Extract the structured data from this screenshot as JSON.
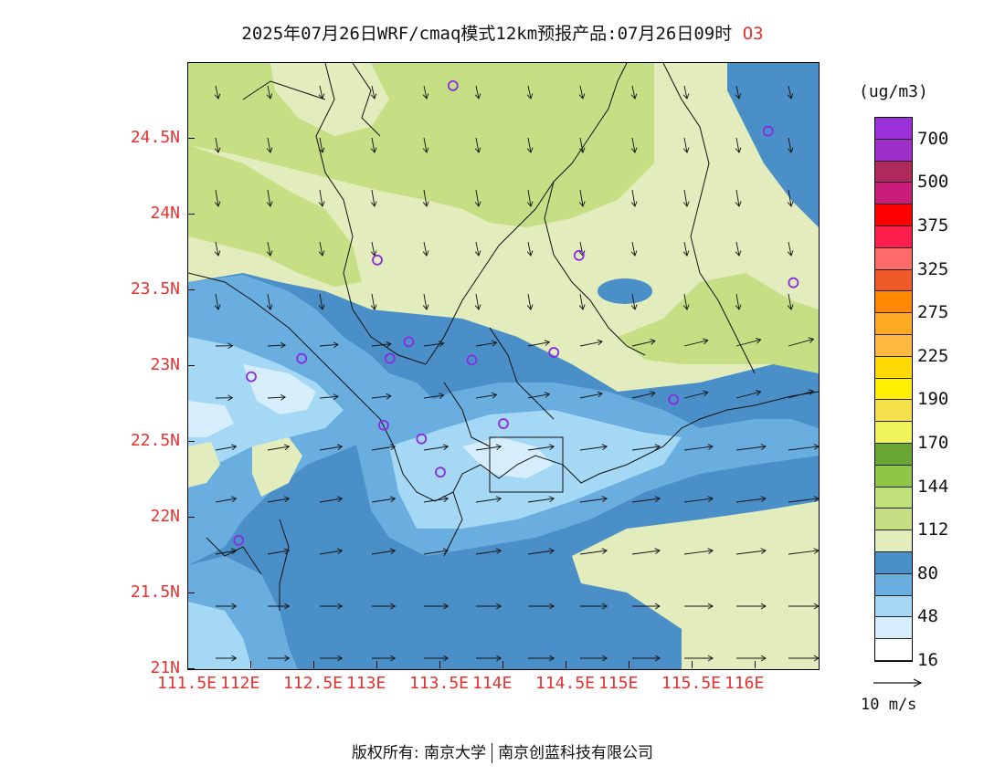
{
  "title": {
    "text": "2025年07月26日WRF/cmaq模式12km预报产品:07月26日09时",
    "species": "O3"
  },
  "axes": {
    "lat_labels": [
      "24.5N",
      "24N",
      "23.5N",
      "23N",
      "22.5N",
      "22N",
      "21.5N",
      "21N"
    ],
    "lat_values": [
      24.5,
      24.0,
      23.5,
      23.0,
      22.5,
      22.0,
      21.5,
      21.0
    ],
    "lon_labels": [
      "111.5E",
      "112E",
      "112.5E",
      "113E",
      "113.5E",
      "114E",
      "114.5E",
      "115E",
      "115.5E",
      "116E"
    ],
    "lon_values": [
      111.5,
      112.0,
      112.5,
      113.0,
      113.5,
      114.0,
      114.5,
      115.0,
      115.5,
      116.0
    ],
    "lon_range": [
      111.5,
      116.5
    ],
    "lat_range": [
      21.0,
      25.0
    ]
  },
  "colorbar": {
    "unit": "(ug/m3)",
    "labels": [
      "700",
      "500",
      "375",
      "325",
      "275",
      "225",
      "190",
      "170",
      "144",
      "112",
      "80",
      "48",
      "16"
    ],
    "colors_top_to_bottom": [
      "#9b30d9",
      "#9e2fc8",
      "#b0295c",
      "#c81d78",
      "#ff0000",
      "#ff1f4e",
      "#ff6b6b",
      "#ee5a2a",
      "#ff8800",
      "#ffaa22",
      "#ffb840",
      "#ffd900",
      "#fff000",
      "#f5e24a",
      "#f1f35c",
      "#6aa632",
      "#8fc647",
      "#c2e07a",
      "#c6df85",
      "#e3ecbc",
      "#4a8fc7",
      "#6aaee0",
      "#a4d8f5",
      "#d6eefc",
      "#ffffff"
    ]
  },
  "regions": {
    "colors": {
      "bin_16_48": "#d6eefc",
      "bin_48_64": "#a4d8f5",
      "bin_64_72": "#6aaee0",
      "bin_72_80": "#4a8fc7",
      "bin_80_96": "#e3ecbc",
      "bin_96_112": "#c6df85"
    }
  },
  "stations": [
    {
      "lon": 113.6,
      "lat": 24.85
    },
    {
      "lon": 116.1,
      "lat": 24.55
    },
    {
      "lon": 113.0,
      "lat": 23.7
    },
    {
      "lon": 114.6,
      "lat": 23.73
    },
    {
      "lon": 116.3,
      "lat": 23.55
    },
    {
      "lon": 112.0,
      "lat": 22.93
    },
    {
      "lon": 112.4,
      "lat": 23.05
    },
    {
      "lon": 113.1,
      "lat": 23.05
    },
    {
      "lon": 113.25,
      "lat": 23.16
    },
    {
      "lon": 113.75,
      "lat": 23.04
    },
    {
      "lon": 114.4,
      "lat": 23.09
    },
    {
      "lon": 115.35,
      "lat": 22.78
    },
    {
      "lon": 113.05,
      "lat": 22.61
    },
    {
      "lon": 113.35,
      "lat": 22.52
    },
    {
      "lon": 114.0,
      "lat": 22.62
    },
    {
      "lon": 113.5,
      "lat": 22.3
    },
    {
      "lon": 111.9,
      "lat": 21.85
    }
  ],
  "wind_reference": {
    "label": "10 m/s"
  },
  "footer": {
    "left": "版权所有: 南京大学",
    "right": "南京创蓝科技有限公司"
  }
}
